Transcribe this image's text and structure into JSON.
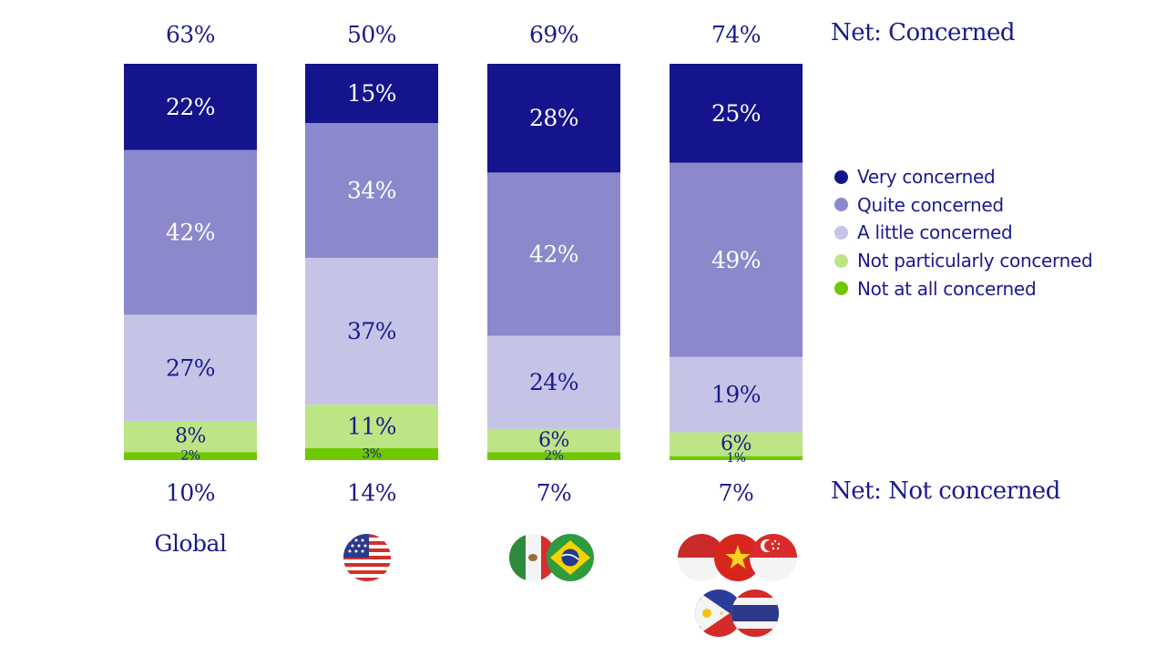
{
  "net_labels": {
    "concerned": "Net: Concerned",
    "not_concerned": "Net: Not concerned"
  },
  "group_label_global": "Global",
  "colors": {
    "very": "#14148c",
    "quite": "#8b89cb",
    "little": "#c5c4e7",
    "not_particularly": "#bde585",
    "not_at_all": "#6ec800",
    "text_dark": "#1a1a8c",
    "text_light": "#ffffff"
  },
  "chart_data": {
    "type": "bar",
    "stacked": true,
    "categories": [
      "Global",
      "United States",
      "Mexico, Brazil",
      "Indonesia, Vietnam, Singapore, Philippines, Thailand"
    ],
    "series": [
      {
        "name": "Very concerned",
        "values": [
          22,
          15,
          28,
          25
        ],
        "labels": [
          "22%",
          "15%",
          "28%",
          "25%"
        ]
      },
      {
        "name": "Quite concerned",
        "values": [
          42,
          34,
          42,
          49
        ],
        "labels": [
          "42%",
          "34%",
          "42%",
          "49%"
        ]
      },
      {
        "name": "A little concerned",
        "values": [
          27,
          37,
          24,
          19
        ],
        "labels": [
          "27%",
          "37%",
          "24%",
          "19%"
        ]
      },
      {
        "name": "Not particularly concerned",
        "values": [
          8,
          11,
          6,
          6
        ],
        "labels": [
          "8%",
          "11%",
          "6%",
          "6%"
        ]
      },
      {
        "name": "Not at all concerned",
        "values": [
          2,
          3,
          2,
          1
        ],
        "labels": [
          "2%",
          "3%",
          "2%",
          "1%"
        ]
      }
    ],
    "net_concerned": [
      "63%",
      "50%",
      "69%",
      "74%"
    ],
    "net_not_concerned": [
      "10%",
      "14%",
      "7%",
      "7%"
    ],
    "legend_position": "right",
    "grid": false
  }
}
